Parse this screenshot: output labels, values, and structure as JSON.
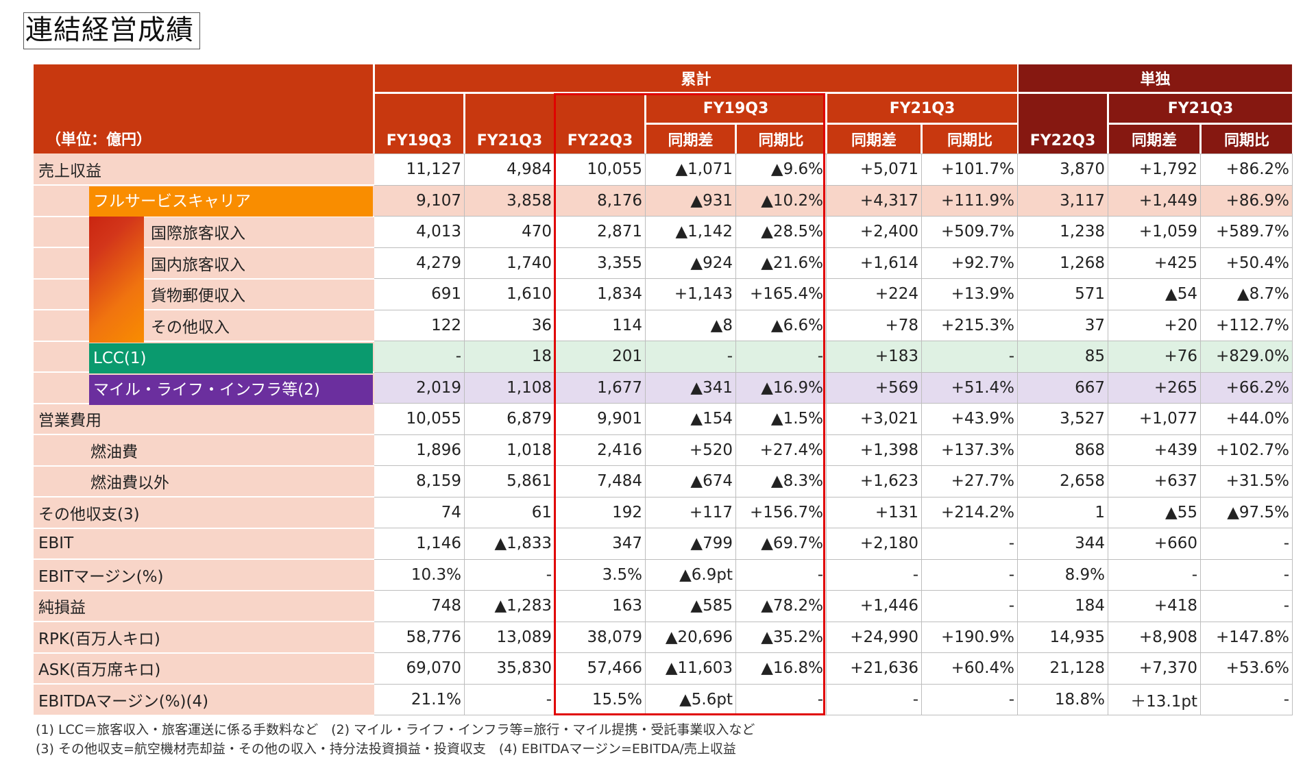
{
  "title": "連結経営成績",
  "header": {
    "unit": "（単位：億円）",
    "cumulative": "累計",
    "standalone": "単独",
    "fy19q3": "FY19Q3",
    "fy21q3": "FY21Q3",
    "fy22q3": "FY22Q3",
    "sub_fy19q3": "FY19Q3",
    "sub_fy21q3": "FY21Q3",
    "sub_fy21q3_standalone": "FY21Q3",
    "diff": "同期差",
    "ratio": "同期比"
  },
  "rows": [
    {
      "label": "売上収益",
      "v": [
        "11,127",
        "4,984",
        "10,055",
        "▲1,071",
        "▲9.6%",
        "+5,071",
        "+101.7%",
        "3,870",
        "+1,792",
        "+86.2%"
      ]
    },
    {
      "label": "フルサービスキャリア",
      "v": [
        "9,107",
        "3,858",
        "8,176",
        "▲931",
        "▲10.2%",
        "+4,317",
        "+111.9%",
        "3,117",
        "+1,449",
        "+86.9%"
      ]
    },
    {
      "label": "国際旅客収入",
      "v": [
        "4,013",
        "470",
        "2,871",
        "▲1,142",
        "▲28.5%",
        "+2,400",
        "+509.7%",
        "1,238",
        "+1,059",
        "+589.7%"
      ]
    },
    {
      "label": "国内旅客収入",
      "v": [
        "4,279",
        "1,740",
        "3,355",
        "▲924",
        "▲21.6%",
        "+1,614",
        "+92.7%",
        "1,268",
        "+425",
        "+50.4%"
      ]
    },
    {
      "label": "貨物郵便収入",
      "v": [
        "691",
        "1,610",
        "1,834",
        "+1,143",
        "+165.4%",
        "+224",
        "+13.9%",
        "571",
        "▲54",
        "▲8.7%"
      ]
    },
    {
      "label": "その他収入",
      "v": [
        "122",
        "36",
        "114",
        "▲8",
        "▲6.6%",
        "+78",
        "+215.3%",
        "37",
        "+20",
        "+112.7%"
      ]
    },
    {
      "label": "LCC(1)",
      "v": [
        "-",
        "18",
        "201",
        "-",
        "-",
        "+183",
        "-",
        "85",
        "+76",
        "+829.0%"
      ]
    },
    {
      "label": "マイル・ライフ・インフラ等(2)",
      "v": [
        "2,019",
        "1,108",
        "1,677",
        "▲341",
        "▲16.9%",
        "+569",
        "+51.4%",
        "667",
        "+265",
        "+66.2%"
      ]
    },
    {
      "label": "営業費用",
      "v": [
        "10,055",
        "6,879",
        "9,901",
        "▲154",
        "▲1.5%",
        "+3,021",
        "+43.9%",
        "3,527",
        "+1,077",
        "+44.0%"
      ]
    },
    {
      "label": "燃油費",
      "v": [
        "1,896",
        "1,018",
        "2,416",
        "+520",
        "+27.4%",
        "+1,398",
        "+137.3%",
        "868",
        "+439",
        "+102.7%"
      ]
    },
    {
      "label": "燃油費以外",
      "v": [
        "8,159",
        "5,861",
        "7,484",
        "▲674",
        "▲8.3%",
        "+1,623",
        "+27.7%",
        "2,658",
        "+637",
        "+31.5%"
      ]
    },
    {
      "label": "その他収支(3)",
      "v": [
        "74",
        "61",
        "192",
        "+117",
        "+156.7%",
        "+131",
        "+214.2%",
        "1",
        "▲55",
        "▲97.5%"
      ]
    },
    {
      "label": "EBIT",
      "v": [
        "1,146",
        "▲1,833",
        "347",
        "▲799",
        "▲69.7%",
        "+2,180",
        "-",
        "344",
        "+660",
        "-"
      ]
    },
    {
      "label": "EBITマージン(%)",
      "v": [
        "10.3%",
        "-",
        "3.5%",
        "▲6.9pt",
        "-",
        "-",
        "-",
        "8.9%",
        "-",
        "-"
      ]
    },
    {
      "label": "純損益",
      "v": [
        "748",
        "▲1,283",
        "163",
        "▲585",
        "▲78.2%",
        "+1,446",
        "-",
        "184",
        "+418",
        "-"
      ]
    },
    {
      "label": "RPK(百万人キロ)",
      "v": [
        "58,776",
        "13,089",
        "38,079",
        "▲20,696",
        "▲35.2%",
        "+24,990",
        "+190.9%",
        "14,935",
        "+8,908",
        "+147.8%"
      ]
    },
    {
      "label": "ASK(百万席キロ)",
      "v": [
        "69,070",
        "35,830",
        "57,466",
        "▲11,603",
        "▲16.8%",
        "+21,636",
        "+60.4%",
        "21,128",
        "+7,370",
        "+53.6%"
      ]
    },
    {
      "label": "EBITDAマージン(%)(4)",
      "v": [
        "21.1%",
        "-",
        "15.5%",
        "▲5.6pt",
        "-",
        "-",
        "-",
        "18.8%",
        "＋13.1pt",
        "-"
      ]
    }
  ],
  "footnotes": {
    "line1": "(1) LCC＝旅客収入・旅客運送に係る手数料など　(2) マイル・ライフ・インフラ等=旅行・マイル提携・受託事業収入など",
    "line2": "(3) その他収支=航空機材売却益・その他の収入・持分法投資損益・投資収支　(4) EBITDAマージン=EBITDA/売上収益"
  },
  "colors": {
    "header_red": "#c8380f",
    "header_dark_red": "#861811",
    "label_bg": "#f8d5c8",
    "fsc_orange": "#f98d00",
    "lcc_green": "#0a9a6e",
    "mile_purple": "#6b2f9e",
    "highlight_box": "#e00000"
  }
}
